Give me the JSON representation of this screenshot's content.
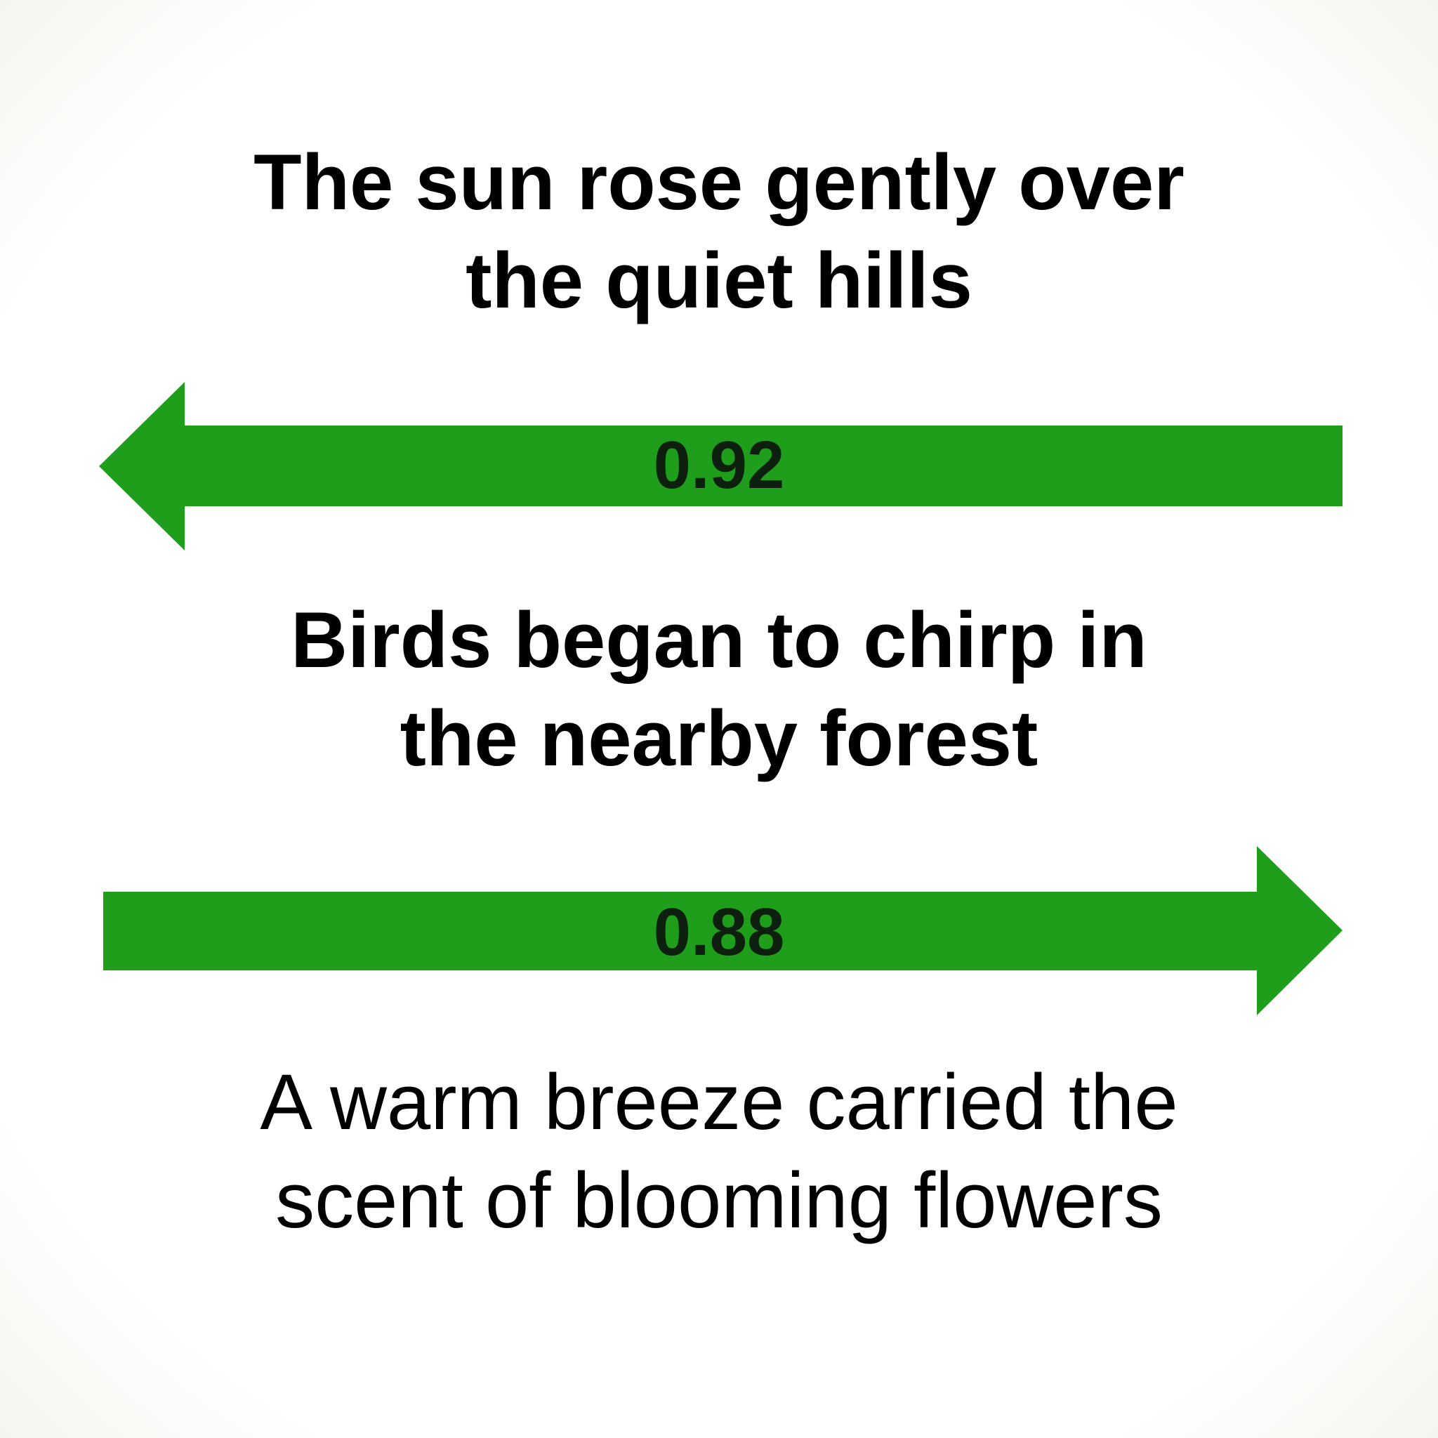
{
  "sentences": [
    {
      "lines": [
        "The sun rose gently over",
        "the quiet hills"
      ]
    },
    {
      "lines": [
        "Birds began to chirp in",
        "the nearby forest"
      ]
    },
    {
      "lines": [
        "A warm breeze carried the",
        "scent of blooming flowers"
      ]
    }
  ],
  "arrows": [
    {
      "direction": "left",
      "score": "0.92",
      "color": "#1f9e1c"
    },
    {
      "direction": "right",
      "score": "0.88",
      "color": "#1f9e1c"
    }
  ]
}
